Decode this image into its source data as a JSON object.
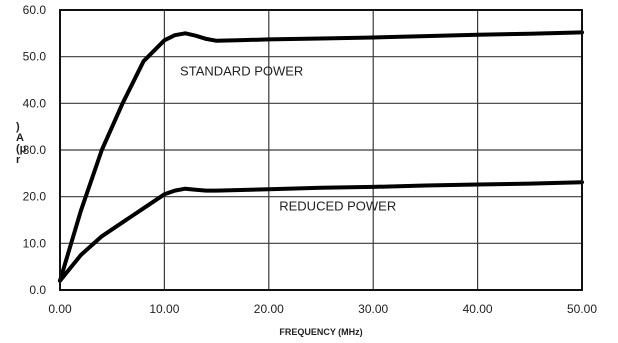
{
  "chart_data": {
    "type": "line",
    "title": "",
    "xlabel": "FREQUENCY (MHz)",
    "ylabel": ")\nA\n(μ\nr",
    "xlim": [
      0,
      50
    ],
    "ylim": [
      0,
      60
    ],
    "x_ticks": [
      "0.00",
      "10.00",
      "20.00",
      "30.00",
      "40.00",
      "50.00"
    ],
    "y_ticks": [
      "0.0",
      "10.0",
      "20.0",
      "30.0",
      "40.0",
      "50.0",
      "60.0"
    ],
    "grid": true,
    "series": [
      {
        "name": "STANDARD POWER",
        "x": [
          0,
          2,
          4,
          6,
          8,
          10,
          11,
          12,
          13,
          14,
          15,
          17,
          20,
          25,
          30,
          35,
          40,
          45,
          50
        ],
        "y": [
          2,
          17,
          30,
          40,
          49,
          53.5,
          54.6,
          55,
          54.5,
          53.8,
          53.4,
          53.5,
          53.7,
          53.9,
          54.1,
          54.4,
          54.7,
          54.9,
          55.2
        ]
      },
      {
        "name": "REDUCED POWER",
        "x": [
          0,
          2,
          4,
          6,
          8,
          10,
          11,
          12,
          13,
          14,
          15,
          20,
          25,
          30,
          35,
          40,
          45,
          50
        ],
        "y": [
          2,
          7.5,
          11.5,
          14.5,
          17.5,
          20.5,
          21.3,
          21.7,
          21.5,
          21.3,
          21.3,
          21.6,
          21.9,
          22.1,
          22.4,
          22.6,
          22.8,
          23.1
        ]
      }
    ],
    "annotations": [
      {
        "text": "STANDARD POWER",
        "x": 11.5,
        "y": 46
      },
      {
        "text": "REDUCED POWER",
        "x": 21,
        "y": 17
      }
    ]
  }
}
